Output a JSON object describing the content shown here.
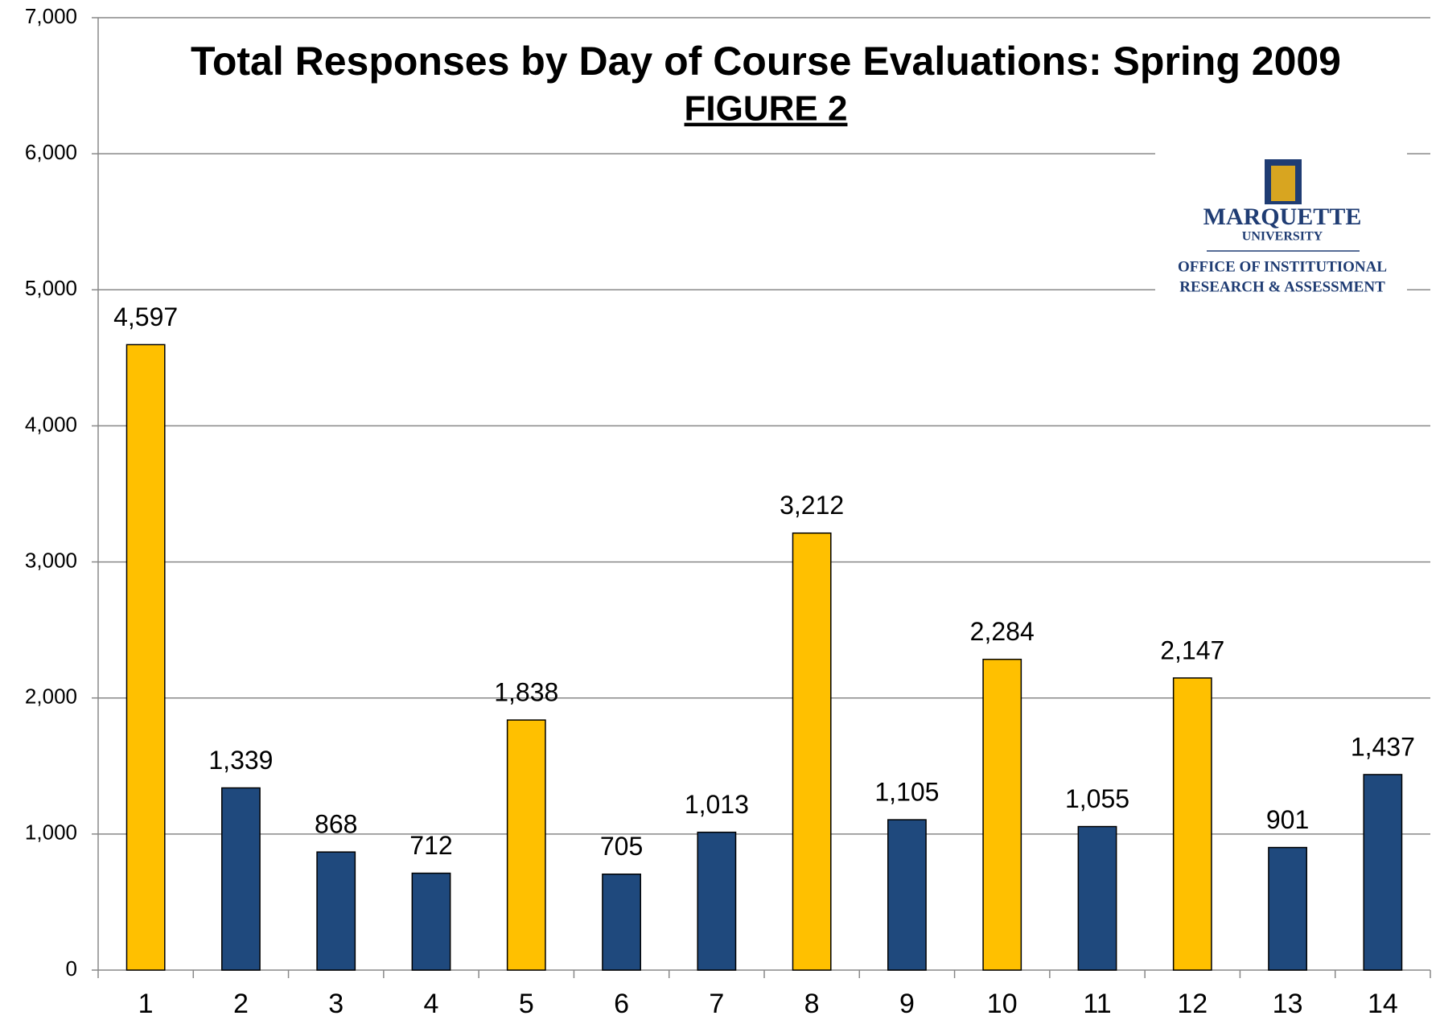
{
  "chart_data": {
    "type": "bar",
    "title": "Total Responses by Day of Course Evaluations: Spring 2009",
    "subtitle": "FIGURE 2",
    "categories": [
      "1",
      "2",
      "3",
      "4",
      "5",
      "6",
      "7",
      "8",
      "9",
      "10",
      "11",
      "12",
      "13",
      "14"
    ],
    "values": [
      4597,
      1339,
      868,
      712,
      1838,
      705,
      1013,
      3212,
      1105,
      2284,
      1055,
      2147,
      901,
      1437
    ],
    "value_labels": [
      "4,597",
      "1,339",
      "868",
      "712",
      "1,838",
      "705",
      "1,013",
      "3,212",
      "1,105",
      "2,284",
      "1,055",
      "2,147",
      "901",
      "1,437"
    ],
    "colors": [
      "#FFC000",
      "#1F497D",
      "#1F497D",
      "#1F497D",
      "#FFC000",
      "#1F497D",
      "#1F497D",
      "#FFC000",
      "#1F497D",
      "#FFC000",
      "#1F497D",
      "#FFC000",
      "#1F497D",
      "#1F497D"
    ],
    "ylim": [
      0,
      7000
    ],
    "yticks": [
      0,
      {
        "value": 1000,
        "label": "1,000"
      },
      {
        "value": 2000,
        "label": "2,000"
      },
      {
        "value": 3000,
        "label": "3,000"
      },
      {
        "value": 4000,
        "label": "4,000"
      },
      {
        "value": 5000,
        "label": "5,000"
      },
      {
        "value": 6000,
        "label": "6,000"
      },
      {
        "value": 7000,
        "label": "7,000"
      }
    ],
    "grid": true,
    "logo": {
      "name": "MARQUETTE",
      "sub": "UNIVERSITY",
      "line1": "OFFICE OF INSTITUTIONAL",
      "line2": "RESEARCH & ASSESSMENT"
    }
  }
}
